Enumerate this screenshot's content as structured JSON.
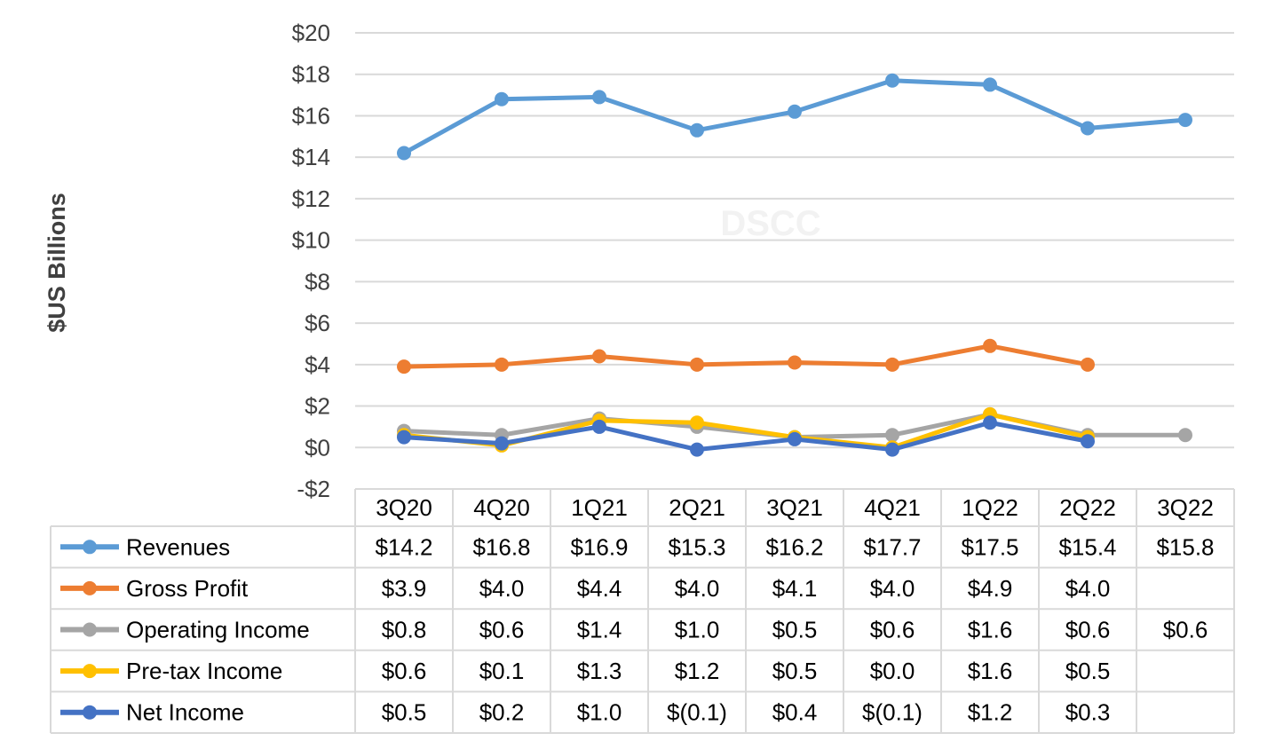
{
  "chart_data": {
    "type": "line",
    "ylabel": "$US Billions",
    "watermark": "DSCC",
    "ylim": [
      -2,
      20
    ],
    "yticks": [
      20,
      18,
      16,
      14,
      12,
      10,
      8,
      6,
      4,
      2,
      0,
      -2
    ],
    "ytick_labels": [
      "$20",
      "$18",
      "$16",
      "$14",
      "$12",
      "$10",
      "$8",
      "$6",
      "$4",
      "$2",
      "$0",
      "-$2"
    ],
    "grid": true,
    "legend": "data-table",
    "categories": [
      "3Q20",
      "4Q20",
      "1Q21",
      "2Q21",
      "3Q21",
      "4Q21",
      "1Q22",
      "2Q22",
      "3Q22"
    ],
    "series": [
      {
        "name": "Revenues",
        "color": "#5b9bd5",
        "values": [
          14.2,
          16.8,
          16.9,
          15.3,
          16.2,
          17.7,
          17.5,
          15.4,
          15.8
        ],
        "labels": [
          "$14.2",
          "$16.8",
          "$16.9",
          "$15.3",
          "$16.2",
          "$17.7",
          "$17.5",
          "$15.4",
          "$15.8"
        ]
      },
      {
        "name": "Gross Profit",
        "color": "#ed7d31",
        "values": [
          3.9,
          4.0,
          4.4,
          4.0,
          4.1,
          4.0,
          4.9,
          4.0,
          null
        ],
        "labels": [
          "$3.9",
          "$4.0",
          "$4.4",
          "$4.0",
          "$4.1",
          "$4.0",
          "$4.9",
          "$4.0",
          ""
        ]
      },
      {
        "name": "Operating Income",
        "color": "#a5a5a5",
        "values": [
          0.8,
          0.6,
          1.4,
          1.0,
          0.5,
          0.6,
          1.6,
          0.6,
          0.6
        ],
        "labels": [
          "$0.8",
          "$0.6",
          "$1.4",
          "$1.0",
          "$0.5",
          "$0.6",
          "$1.6",
          "$0.6",
          "$0.6"
        ]
      },
      {
        "name": "Pre-tax Income",
        "color": "#ffc000",
        "values": [
          0.6,
          0.1,
          1.3,
          1.2,
          0.5,
          0.0,
          1.6,
          0.5,
          null
        ],
        "labels": [
          "$0.6",
          "$0.1",
          "$1.3",
          "$1.2",
          "$0.5",
          "$0.0",
          "$1.6",
          "$0.5",
          ""
        ]
      },
      {
        "name": "Net Income",
        "color": "#4472c4",
        "values": [
          0.5,
          0.2,
          1.0,
          -0.1,
          0.4,
          -0.1,
          1.2,
          0.3,
          null
        ],
        "labels": [
          "$0.5",
          "$0.2",
          "$1.0",
          "$(0.1)",
          "$0.4",
          "$(0.1)",
          "$1.2",
          "$0.3",
          ""
        ]
      }
    ]
  }
}
